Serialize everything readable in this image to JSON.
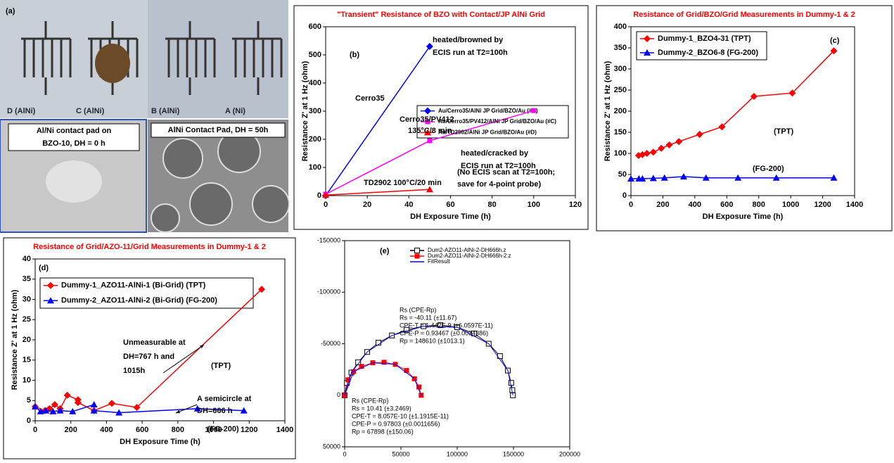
{
  "photos": {
    "label": "(a)",
    "samples": [
      "D (AlNi)",
      "C (AlNi)",
      "B (AlNi)",
      "A (Ni)"
    ],
    "captions": [
      [
        "Al/Ni contact pad on",
        "BZO-10, DH = 0 h"
      ],
      [
        "AlNi Contact Pad, DH = 50h"
      ]
    ]
  },
  "chart_data": [
    {
      "type": "line",
      "title": "\"Transient\" Resistance of BZO with Contact/JP AlNi Grid",
      "x_label": "DH Exposure Time (h)",
      "y_label": "Resistance Z' at 1 Hz (ohm)",
      "xlim": [
        0,
        120
      ],
      "xticks": [
        0,
        20,
        40,
        60,
        80,
        100,
        120
      ],
      "ylim": [
        0,
        600
      ],
      "yticks": [
        0,
        100,
        200,
        300,
        400,
        500,
        600
      ],
      "legend_frame": true,
      "series": [
        {
          "name": "Au/Cerro35/AlNi JP Grid/BZO/Au (#B)",
          "color": "#0000ff",
          "marker": "diamond",
          "x": [
            0,
            50
          ],
          "values": [
            0,
            530
          ]
        },
        {
          "name": "Au/Cerro35/PV412/AlNi JP Grid/BZO/Au (#C)",
          "color": "#ff00ff",
          "marker": "square",
          "x": [
            0,
            50,
            100
          ],
          "values": [
            5,
            195,
            302
          ]
        },
        {
          "name": "Au/TD2902/AlNi JP Grid/BZO/Au (#D)",
          "color": "#ff0000",
          "marker": "triangle",
          "x": [
            0,
            50
          ],
          "values": [
            2,
            22
          ]
        }
      ],
      "annotations": [
        "(b)",
        "heated/browned by",
        "ECIS run at T2=100h",
        "Cerro35",
        "Cerro35/PV412",
        "135°C/8 min",
        "heated/cracked by",
        "ECIS run at T2=100h",
        "TD2902 100°C/20 min",
        "(No ECIS scan at T2=100h;",
        "save for 4-point probe)"
      ]
    },
    {
      "type": "line",
      "title": "Resistance of Grid/BZO/Grid Measurements in Dummy-1 & 2",
      "x_label": "DH Exposure Time (h)",
      "y_label": "Resistance Z' at 1 Hz (ohm)",
      "xlim": [
        0,
        1400
      ],
      "xticks": [
        0,
        200,
        400,
        600,
        800,
        1000,
        1200,
        1400
      ],
      "ylim": [
        0,
        400
      ],
      "yticks": [
        0,
        50,
        100,
        150,
        200,
        250,
        300,
        350,
        400
      ],
      "legend_frame": true,
      "series": [
        {
          "name": "Dummy-1_BZO4-31 (TPT)",
          "color": "#ff0000",
          "marker": "diamond",
          "x": [
            48,
            72,
            100,
            140,
            190,
            240,
            300,
            430,
            570,
            770,
            1010,
            1270
          ],
          "values": [
            95,
            97,
            100,
            103,
            112,
            120,
            128,
            145,
            163,
            235,
            243,
            343
          ]
        },
        {
          "name": "Dummy-2_BZO6-8 (FG-200)",
          "color": "#0000ff",
          "marker": "triangle",
          "x": [
            0,
            50,
            72,
            140,
            210,
            330,
            470,
            670,
            910,
            1270
          ],
          "values": [
            40,
            40,
            40,
            41,
            42,
            45,
            42,
            42,
            42,
            42
          ]
        }
      ],
      "annotations": [
        "(c)",
        "(TPT)",
        "(FG-200)"
      ]
    },
    {
      "type": "line",
      "title": "Resistance of Grid/AZO-11/Grid Measurements in Dummy-1 & 2",
      "x_label": "DH Exposure Time (h)",
      "y_label": "Resistance Z' at 1 Hz (ohm)",
      "xlim": [
        0,
        1400
      ],
      "xticks": [
        0,
        200,
        400,
        600,
        800,
        1000,
        1200,
        1400
      ],
      "ylim": [
        0,
        40
      ],
      "yticks": [
        0,
        5,
        10,
        15,
        20,
        25,
        30,
        35,
        40
      ],
      "legend_frame": true,
      "series": [
        {
          "name": "Dummy-1_AZO11-AlNi-1 (Bi-Grid) (TPT)",
          "color": "#ff0000",
          "marker": "diamond",
          "x": [
            0,
            55,
            80,
            110,
            140,
            180,
            240,
            240,
            330,
            430,
            570,
            1270
          ],
          "values": [
            3.5,
            2.5,
            3,
            4,
            3,
            6.3,
            5.2,
            4.5,
            2.5,
            4.3,
            3.3,
            32.5
          ]
        },
        {
          "name": "Dummy-2_AZO11-AlNi-2 (Bi-Grid) (FG-200)",
          "color": "#0000ff",
          "marker": "triangle",
          "x": [
            0,
            30,
            60,
            100,
            140,
            210,
            330,
            330,
            470,
            910,
            1170
          ],
          "values": [
            3.5,
            2.3,
            2.5,
            2.3,
            2.5,
            2.3,
            4,
            2.5,
            2,
            3,
            2.5
          ]
        }
      ],
      "annotations": [
        "(d)",
        "Unmeasurable at",
        "DH=767 h and",
        "1015h",
        "(TPT)",
        "A semicircle at",
        "DH=666 h",
        "(FG-200)"
      ]
    },
    {
      "type": "nyquist",
      "xlim": [
        0,
        200000
      ],
      "xticks": [
        0,
        50000,
        100000,
        150000,
        200000
      ],
      "ylim": [
        50000,
        -150000
      ],
      "yticks": [
        50000,
        0,
        -50000,
        -100000,
        -150000
      ],
      "legend_frame": false,
      "series": [
        {
          "name": "Dum2-AZO11-AlNi-2-DH666h.z",
          "color": "#000000",
          "marker": "open-square",
          "x": [
            0,
            2000,
            6000,
            12000,
            20000,
            30000,
            42000,
            55000,
            70000,
            85000,
            100000,
            115000,
            128000,
            138000,
            145000,
            148000,
            149000,
            149500
          ],
          "values": [
            0,
            -12000,
            -22000,
            -32000,
            -42000,
            -51000,
            -58000,
            -63500,
            -67000,
            -68000,
            -66000,
            -60000,
            -50000,
            -38000,
            -24000,
            -12000,
            -5000,
            0
          ]
        },
        {
          "name": "Dum2-AZO11-AlNi-2-DH666h-2.z",
          "color": "#ff0000",
          "marker": "square",
          "x": [
            0,
            3000,
            8000,
            15000,
            25000,
            35000,
            45000,
            55000,
            62000,
            66000,
            68000
          ],
          "values": [
            0,
            -15000,
            -23000,
            -28000,
            -31500,
            -32000,
            -30000,
            -24000,
            -16000,
            -8000,
            0
          ]
        },
        {
          "name": "FitResult",
          "color": "#0000ff",
          "marker": "none",
          "x": [
            0,
            6000,
            20000,
            42000,
            70000,
            100000,
            128000,
            145000,
            149500,
            null,
            0,
            8000,
            25000,
            45000,
            62000,
            68000
          ],
          "values": [
            0,
            -22000,
            -42000,
            -58000,
            -67000,
            -66000,
            -50000,
            -24000,
            0,
            null,
            0,
            -23000,
            -31500,
            -30000,
            -16000,
            0
          ]
        }
      ],
      "annotations": [
        "(e)",
        "Rs (CPE-Rp)",
        "Rs = -40.11  (±11.67)",
        "CPE-T = 1.442E-9  (±6.0597E-11)",
        "CPE-P = 0.93467  (±0.0034386)",
        "Rp = 148610  (±1013.1)",
        "Rs (CPE-Rp)",
        "Rs = 10.41  (±3.2469)",
        "CPE-T = 8.057E-10  (±1.1915E-11)",
        "CPE-P = 0.97803  (±0.0011656)",
        "Rp = 67898  (±150.06)"
      ]
    }
  ]
}
